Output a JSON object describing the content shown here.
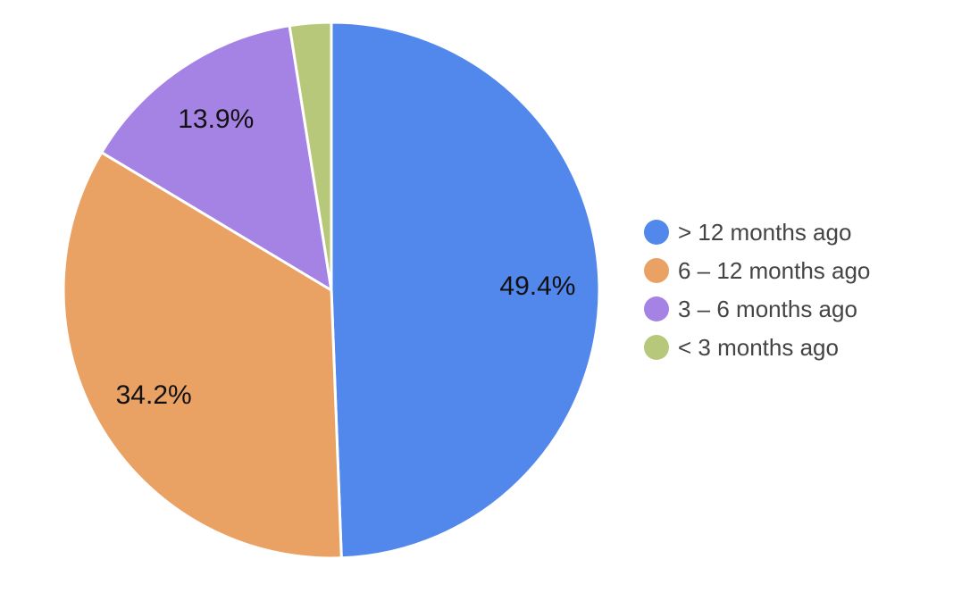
{
  "chart_data": {
    "type": "pie",
    "title": "",
    "legend_position": "right",
    "categories": [
      "> 12 months ago",
      "6 – 12 months ago",
      "3 – 6 months ago",
      "< 3 months ago"
    ],
    "values": [
      49.4,
      34.2,
      13.9,
      2.5
    ],
    "data_labels": [
      "49.4%",
      "34.2%",
      "13.9%",
      ""
    ],
    "colors": [
      "#5287EC",
      "#E9A263",
      "#A583E4",
      "#B8C87A"
    ]
  }
}
